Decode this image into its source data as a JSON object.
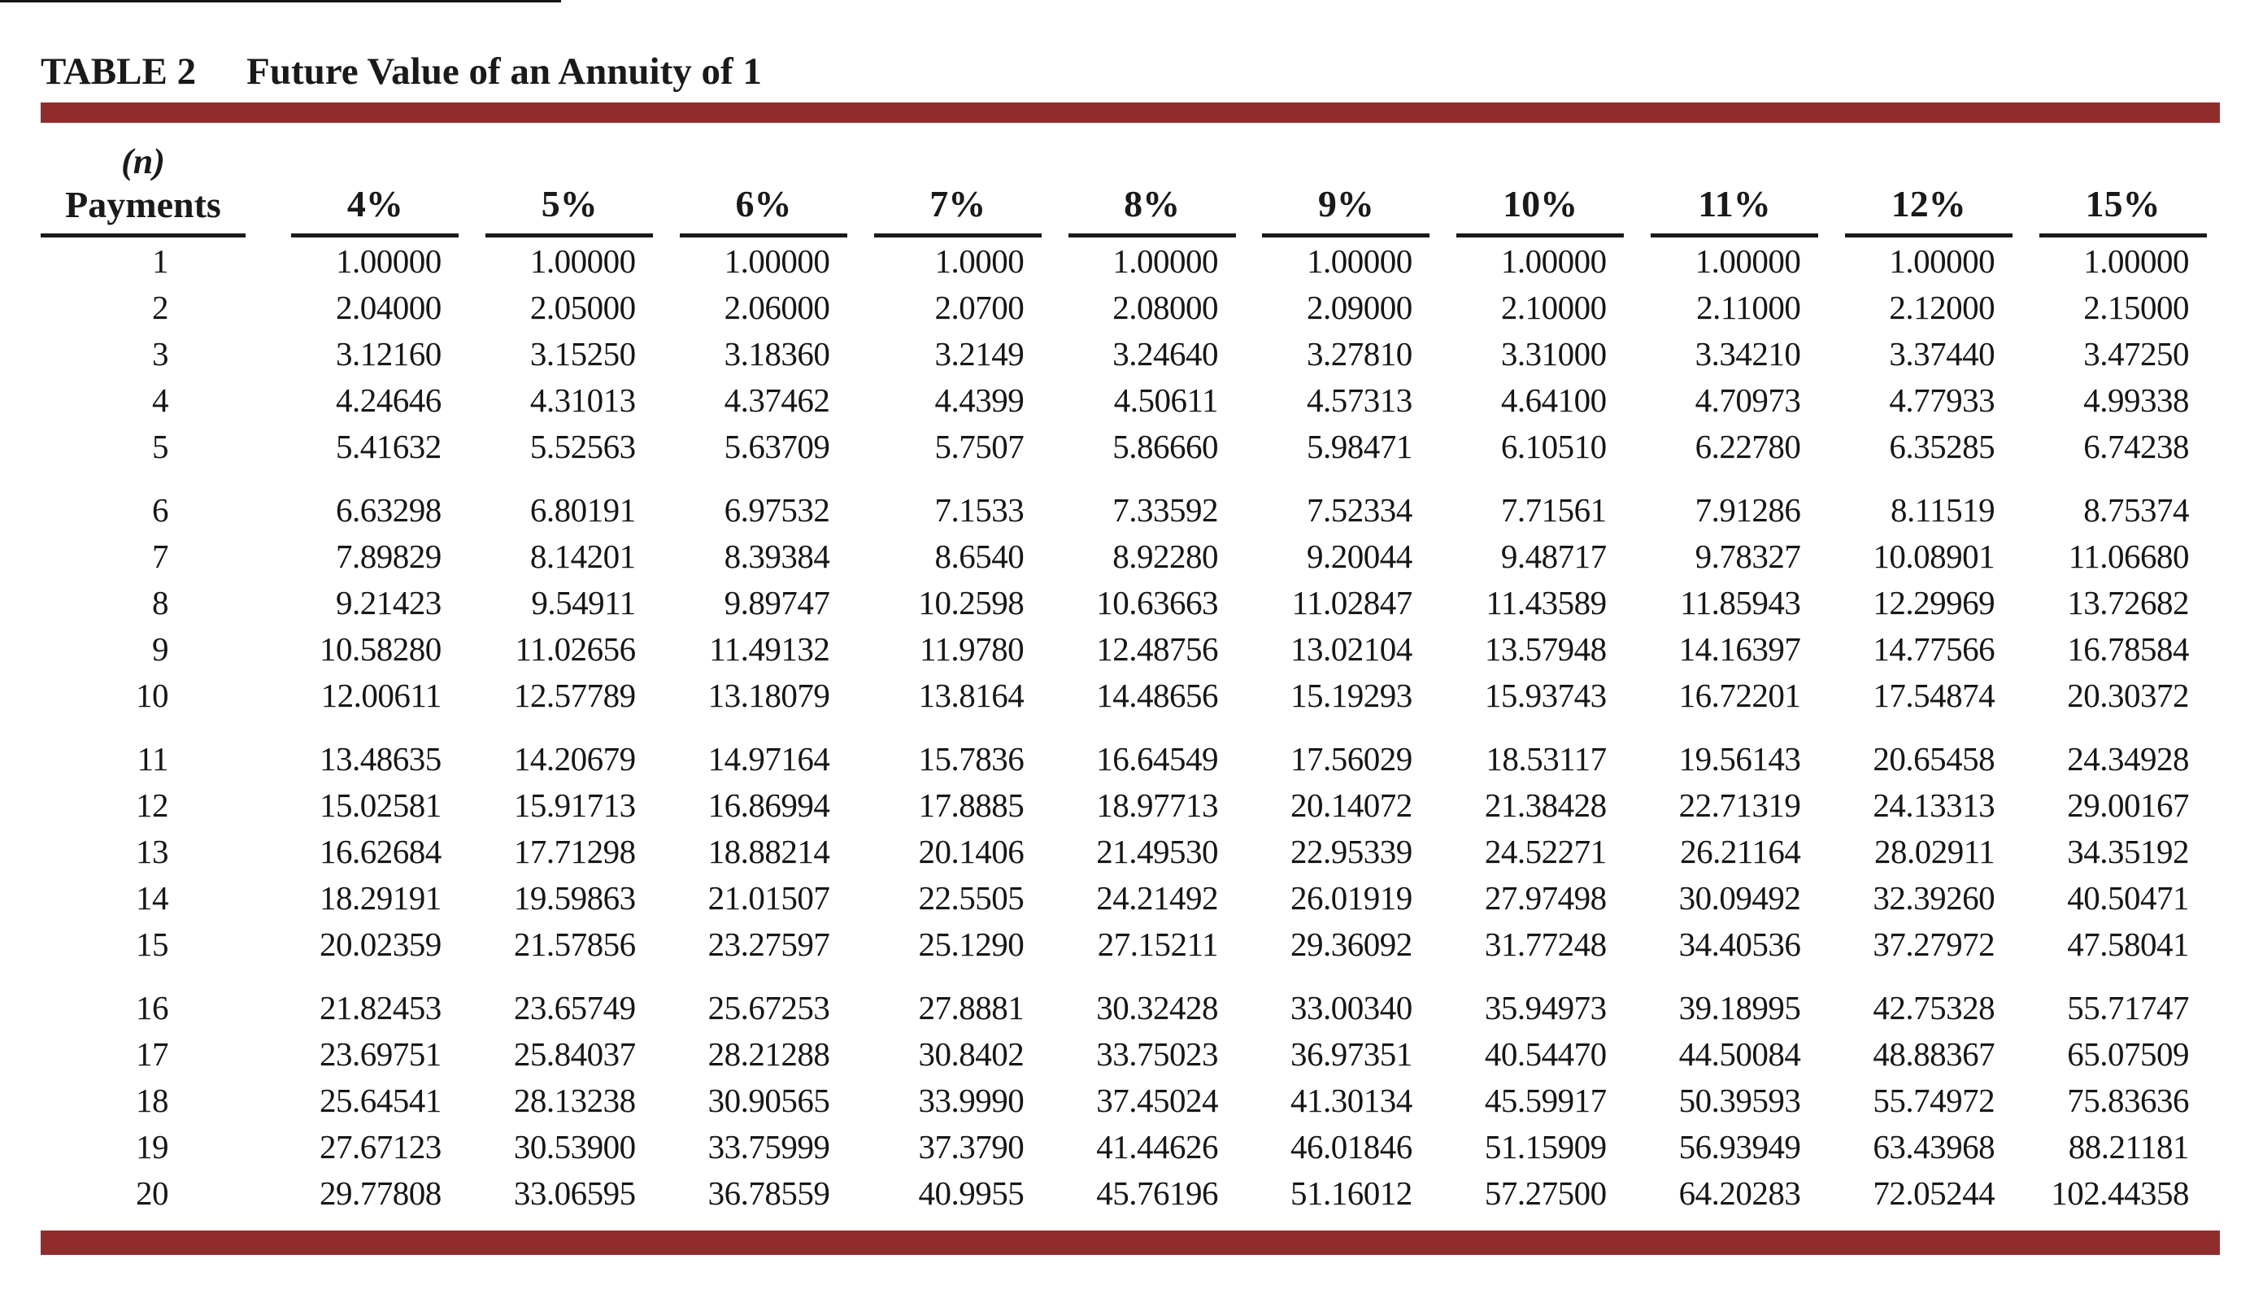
{
  "page": {
    "title_label": "TABLE 2",
    "title_text": "Future Value of an Annuity of 1"
  },
  "colors": {
    "accent": "#912c2c",
    "rule": "#1a1a1a"
  },
  "table": {
    "corner": {
      "line1": "(n)",
      "line2": "Payments"
    },
    "columns": [
      "4%",
      "5%",
      "6%",
      "7%",
      "8%",
      "9%",
      "10%",
      "11%",
      "12%",
      "15%"
    ],
    "rows": [
      {
        "n": "1",
        "values": [
          "1.00000",
          "1.00000",
          "1.00000",
          "1.0000",
          "1.00000",
          "1.00000",
          "1.00000",
          "1.00000",
          "1.00000",
          "1.00000"
        ]
      },
      {
        "n": "2",
        "values": [
          "2.04000",
          "2.05000",
          "2.06000",
          "2.0700",
          "2.08000",
          "2.09000",
          "2.10000",
          "2.11000",
          "2.12000",
          "2.15000"
        ]
      },
      {
        "n": "3",
        "values": [
          "3.12160",
          "3.15250",
          "3.18360",
          "3.2149",
          "3.24640",
          "3.27810",
          "3.31000",
          "3.34210",
          "3.37440",
          "3.47250"
        ]
      },
      {
        "n": "4",
        "values": [
          "4.24646",
          "4.31013",
          "4.37462",
          "4.4399",
          "4.50611",
          "4.57313",
          "4.64100",
          "4.70973",
          "4.77933",
          "4.99338"
        ]
      },
      {
        "n": "5",
        "values": [
          "5.41632",
          "5.52563",
          "5.63709",
          "5.7507",
          "5.86660",
          "5.98471",
          "6.10510",
          "6.22780",
          "6.35285",
          "6.74238"
        ]
      },
      {
        "n": "6",
        "values": [
          "6.63298",
          "6.80191",
          "6.97532",
          "7.1533",
          "7.33592",
          "7.52334",
          "7.71561",
          "7.91286",
          "8.11519",
          "8.75374"
        ]
      },
      {
        "n": "7",
        "values": [
          "7.89829",
          "8.14201",
          "8.39384",
          "8.6540",
          "8.92280",
          "9.20044",
          "9.48717",
          "9.78327",
          "10.08901",
          "11.06680"
        ]
      },
      {
        "n": "8",
        "values": [
          "9.21423",
          "9.54911",
          "9.89747",
          "10.2598",
          "10.63663",
          "11.02847",
          "11.43589",
          "11.85943",
          "12.29969",
          "13.72682"
        ]
      },
      {
        "n": "9",
        "values": [
          "10.58280",
          "11.02656",
          "11.49132",
          "11.9780",
          "12.48756",
          "13.02104",
          "13.57948",
          "14.16397",
          "14.77566",
          "16.78584"
        ]
      },
      {
        "n": "10",
        "values": [
          "12.00611",
          "12.57789",
          "13.18079",
          "13.8164",
          "14.48656",
          "15.19293",
          "15.93743",
          "16.72201",
          "17.54874",
          "20.30372"
        ]
      },
      {
        "n": "11",
        "values": [
          "13.48635",
          "14.20679",
          "14.97164",
          "15.7836",
          "16.64549",
          "17.56029",
          "18.53117",
          "19.56143",
          "20.65458",
          "24.34928"
        ]
      },
      {
        "n": "12",
        "values": [
          "15.02581",
          "15.91713",
          "16.86994",
          "17.8885",
          "18.97713",
          "20.14072",
          "21.38428",
          "22.71319",
          "24.13313",
          "29.00167"
        ]
      },
      {
        "n": "13",
        "values": [
          "16.62684",
          "17.71298",
          "18.88214",
          "20.1406",
          "21.49530",
          "22.95339",
          "24.52271",
          "26.21164",
          "28.02911",
          "34.35192"
        ]
      },
      {
        "n": "14",
        "values": [
          "18.29191",
          "19.59863",
          "21.01507",
          "22.5505",
          "24.21492",
          "26.01919",
          "27.97498",
          "30.09492",
          "32.39260",
          "40.50471"
        ]
      },
      {
        "n": "15",
        "values": [
          "20.02359",
          "21.57856",
          "23.27597",
          "25.1290",
          "27.15211",
          "29.36092",
          "31.77248",
          "34.40536",
          "37.27972",
          "47.58041"
        ]
      },
      {
        "n": "16",
        "values": [
          "21.82453",
          "23.65749",
          "25.67253",
          "27.8881",
          "30.32428",
          "33.00340",
          "35.94973",
          "39.18995",
          "42.75328",
          "55.71747"
        ]
      },
      {
        "n": "17",
        "values": [
          "23.69751",
          "25.84037",
          "28.21288",
          "30.8402",
          "33.75023",
          "36.97351",
          "40.54470",
          "44.50084",
          "48.88367",
          "65.07509"
        ]
      },
      {
        "n": "18",
        "values": [
          "25.64541",
          "28.13238",
          "30.90565",
          "33.9990",
          "37.45024",
          "41.30134",
          "45.59917",
          "50.39593",
          "55.74972",
          "75.83636"
        ]
      },
      {
        "n": "19",
        "values": [
          "27.67123",
          "30.53900",
          "33.75999",
          "37.3790",
          "41.44626",
          "46.01846",
          "51.15909",
          "56.93949",
          "63.43968",
          "88.21181"
        ]
      },
      {
        "n": "20",
        "values": [
          "29.77808",
          "33.06595",
          "36.78559",
          "40.9955",
          "45.76196",
          "51.16012",
          "57.27500",
          "64.20283",
          "72.05244",
          "102.44358"
        ]
      }
    ]
  }
}
